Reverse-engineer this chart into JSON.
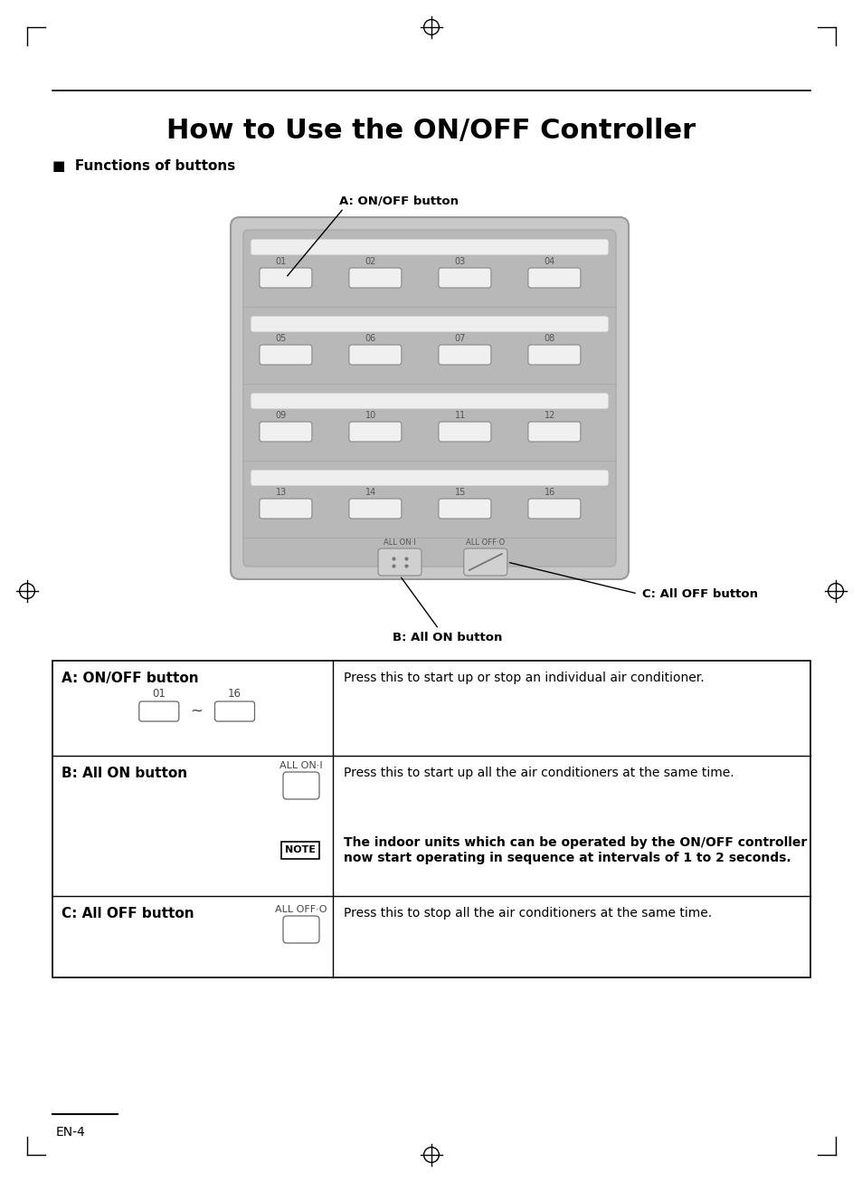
{
  "title": "How to Use the ON/OFF Controller",
  "section_header": "Functions of buttons",
  "label_A": "A: ON/OFF button",
  "label_B": "B: All ON button",
  "label_C": "C: All OFF button",
  "row_labels": [
    [
      "01",
      "02",
      "03",
      "04"
    ],
    [
      "05",
      "06",
      "07",
      "08"
    ],
    [
      "09",
      "10",
      "11",
      "12"
    ],
    [
      "13",
      "14",
      "15",
      "16"
    ]
  ],
  "all_on_label": "ALL ON·I",
  "all_off_label": "ALL OFF·O",
  "bg_color": "#ffffff",
  "footer_text": "EN-4",
  "note_text": "The indoor units which can be operated by the ON/OFF controller\nnow start operating in sequence at intervals of 1 to 2 seconds.",
  "desc_A": "Press this to start up or stop an individual air conditioner.",
  "desc_B": "Press this to start up all the air conditioners at the same time.",
  "desc_C": "Press this to stop all the air conditioners at the same time."
}
